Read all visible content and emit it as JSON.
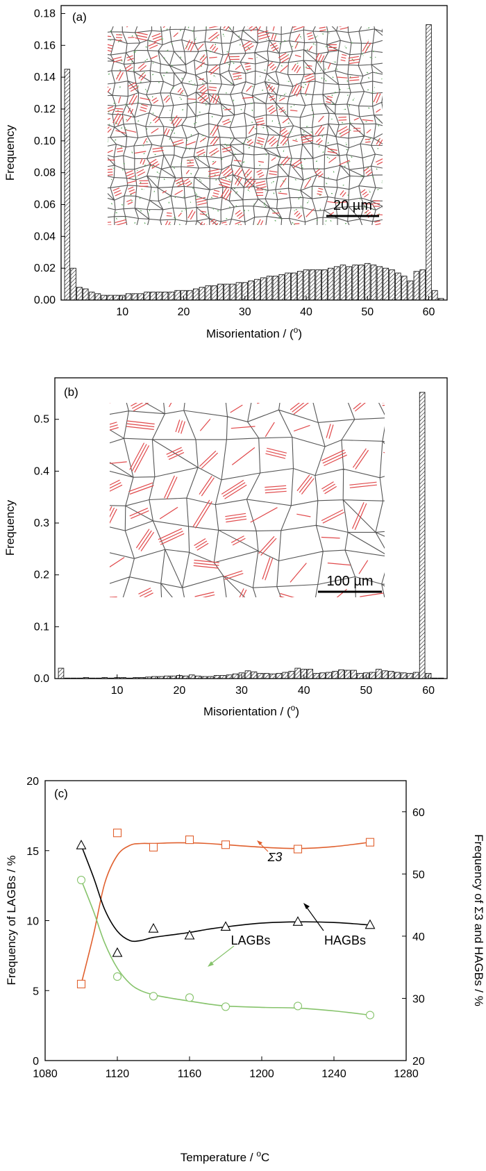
{
  "chart_data": [
    {
      "type": "bar",
      "panel_label": "(a)",
      "xlabel_prefix": "Misorientation / (",
      "xlabel_sup": "o",
      "xlabel_suffix": ")",
      "ylabel": "Frequency",
      "xlim": [
        0,
        63
      ],
      "ylim": [
        0,
        0.185
      ],
      "xticks": [
        10,
        20,
        30,
        40,
        50,
        60
      ],
      "yticks": [
        0.0,
        0.02,
        0.04,
        0.06,
        0.08,
        0.1,
        0.12,
        0.14,
        0.16,
        0.18
      ],
      "ytick_labels": [
        "0.00",
        "0.02",
        "0.04",
        "0.06",
        "0.08",
        "0.10",
        "0.12",
        "0.14",
        "0.16",
        "0.18"
      ],
      "bin_width": 1,
      "x": [
        1,
        2,
        3,
        4,
        5,
        6,
        7,
        8,
        9,
        10,
        11,
        12,
        13,
        14,
        15,
        16,
        17,
        18,
        19,
        20,
        21,
        22,
        23,
        24,
        25,
        26,
        27,
        28,
        29,
        30,
        31,
        32,
        33,
        34,
        35,
        36,
        37,
        38,
        39,
        40,
        41,
        42,
        43,
        44,
        45,
        46,
        47,
        48,
        49,
        50,
        51,
        52,
        53,
        54,
        55,
        56,
        57,
        58,
        59,
        60,
        61,
        62
      ],
      "values": [
        0.145,
        0.02,
        0.008,
        0.007,
        0.005,
        0.004,
        0.003,
        0.003,
        0.003,
        0.003,
        0.004,
        0.004,
        0.004,
        0.005,
        0.005,
        0.005,
        0.005,
        0.005,
        0.006,
        0.006,
        0.006,
        0.007,
        0.008,
        0.009,
        0.009,
        0.01,
        0.01,
        0.01,
        0.011,
        0.011,
        0.012,
        0.013,
        0.014,
        0.015,
        0.015,
        0.016,
        0.017,
        0.017,
        0.018,
        0.019,
        0.019,
        0.019,
        0.019,
        0.02,
        0.021,
        0.022,
        0.021,
        0.022,
        0.022,
        0.023,
        0.022,
        0.021,
        0.02,
        0.019,
        0.017,
        0.015,
        0.012,
        0.018,
        0.019,
        0.173,
        0.006,
        0.001
      ],
      "inset_scale_label": "20 µm"
    },
    {
      "type": "bar",
      "panel_label": "(b)",
      "xlabel_prefix": "Misorientation / (",
      "xlabel_sup": "o",
      "xlabel_suffix": ")",
      "ylabel": "Frequency",
      "xlim": [
        0,
        63
      ],
      "ylim": [
        0,
        0.58
      ],
      "xticks": [
        10,
        20,
        30,
        40,
        50,
        60
      ],
      "yticks": [
        0.0,
        0.1,
        0.2,
        0.3,
        0.4,
        0.5
      ],
      "ytick_labels": [
        "0.0",
        "0.1",
        "0.2",
        "0.3",
        "0.4",
        "0.5"
      ],
      "bin_width": 1,
      "x": [
        1,
        2,
        3,
        4,
        5,
        6,
        7,
        8,
        9,
        10,
        11,
        12,
        13,
        14,
        15,
        16,
        17,
        18,
        19,
        20,
        21,
        22,
        23,
        24,
        25,
        26,
        27,
        28,
        29,
        30,
        31,
        32,
        33,
        34,
        35,
        36,
        37,
        38,
        39,
        40,
        41,
        42,
        43,
        44,
        45,
        46,
        47,
        48,
        49,
        50,
        51,
        52,
        53,
        54,
        55,
        56,
        57,
        58,
        59,
        60,
        61,
        62
      ],
      "values": [
        0.02,
        0.001,
        0.001,
        0.001,
        0.002,
        0.001,
        0.001,
        0.002,
        0.001,
        0.002,
        0.002,
        0.001,
        0.002,
        0.002,
        0.003,
        0.004,
        0.004,
        0.005,
        0.005,
        0.006,
        0.005,
        0.007,
        0.005,
        0.004,
        0.004,
        0.006,
        0.006,
        0.007,
        0.009,
        0.011,
        0.015,
        0.013,
        0.01,
        0.01,
        0.009,
        0.01,
        0.012,
        0.014,
        0.02,
        0.018,
        0.018,
        0.01,
        0.011,
        0.012,
        0.014,
        0.017,
        0.016,
        0.016,
        0.01,
        0.011,
        0.012,
        0.018,
        0.015,
        0.014,
        0.012,
        0.011,
        0.01,
        0.012,
        0.552,
        0.01,
        0.001,
        0.001
      ],
      "inset_scale_label": "100 µm"
    },
    {
      "type": "line",
      "panel_label": "(c)",
      "xlabel_prefix": "Temperature / ",
      "xlabel_sup": "o",
      "xlabel_suffix": "C",
      "ylabel_left": "Frequency of LAGBs / %",
      "ylabel_right": "Frequency of Σ3 and HAGBs / %",
      "xlim": [
        1080,
        1280
      ],
      "xticks": [
        1080,
        1120,
        1160,
        1200,
        1240,
        1280
      ],
      "ylim_left": [
        0,
        20
      ],
      "yticks_left": [
        0,
        5,
        10,
        15,
        20
      ],
      "ylim_right": [
        20,
        65
      ],
      "yticks_right": [
        20,
        30,
        40,
        50,
        60
      ],
      "series": [
        {
          "name": "Σ3",
          "axis": "right",
          "marker": "square",
          "color": "#e0602e",
          "x": [
            1100,
            1120,
            1140,
            1160,
            1180,
            1220,
            1260
          ],
          "y": [
            32.3,
            56.6,
            54.3,
            55.5,
            54.7,
            54.0,
            55.1
          ],
          "curve_x": [
            1100,
            1107,
            1113,
            1120,
            1127,
            1133,
            1140,
            1150,
            1160,
            1170,
            1180,
            1200,
            1220,
            1240,
            1260
          ],
          "curve_y": [
            32.3,
            40.5,
            48.5,
            53.0,
            54.6,
            54.9,
            54.9,
            55.0,
            55.0,
            54.9,
            54.7,
            54.3,
            54.1,
            54.4,
            55.1
          ]
        },
        {
          "name": "HAGBs",
          "axis": "right",
          "marker": "triangle",
          "color": "#000000",
          "x": [
            1100,
            1120,
            1140,
            1160,
            1180,
            1220,
            1260
          ],
          "y": [
            54.6,
            37.3,
            41.2,
            40.1,
            41.5,
            42.3,
            41.8
          ],
          "curve_x": [
            1100,
            1107,
            1113,
            1120,
            1127,
            1133,
            1140,
            1150,
            1160,
            1170,
            1180,
            1200,
            1220,
            1240,
            1260
          ],
          "curve_y": [
            54.6,
            49.3,
            44.3,
            40.8,
            39.3,
            39.3,
            39.8,
            40.2,
            40.6,
            41.1,
            41.5,
            42.1,
            42.3,
            42.2,
            41.8
          ]
        },
        {
          "name": "LAGBs",
          "axis": "left",
          "marker": "circle",
          "color": "#86c36b",
          "x": [
            1100,
            1120,
            1140,
            1160,
            1180,
            1220,
            1260
          ],
          "y": [
            12.9,
            6.0,
            4.6,
            4.5,
            3.85,
            3.9,
            3.25
          ],
          "curve_x": [
            1100,
            1107,
            1113,
            1120,
            1127,
            1133,
            1140,
            1150,
            1160,
            1170,
            1180,
            1200,
            1220,
            1240,
            1260
          ],
          "curve_y": [
            12.9,
            10.6,
            8.4,
            6.6,
            5.5,
            5.0,
            4.7,
            4.45,
            4.25,
            4.05,
            3.9,
            3.8,
            3.75,
            3.55,
            3.25
          ]
        }
      ],
      "annotations": [
        {
          "text": "Σ3",
          "color": "#e0602e"
        },
        {
          "text": "HAGBs",
          "color": "#000000"
        },
        {
          "text": "LAGBs",
          "color": "#86c36b"
        }
      ]
    }
  ],
  "colors": {
    "twin_boundary": "#e0484a",
    "lagb": "#5aa55a",
    "grain_boundary": "#555555"
  }
}
